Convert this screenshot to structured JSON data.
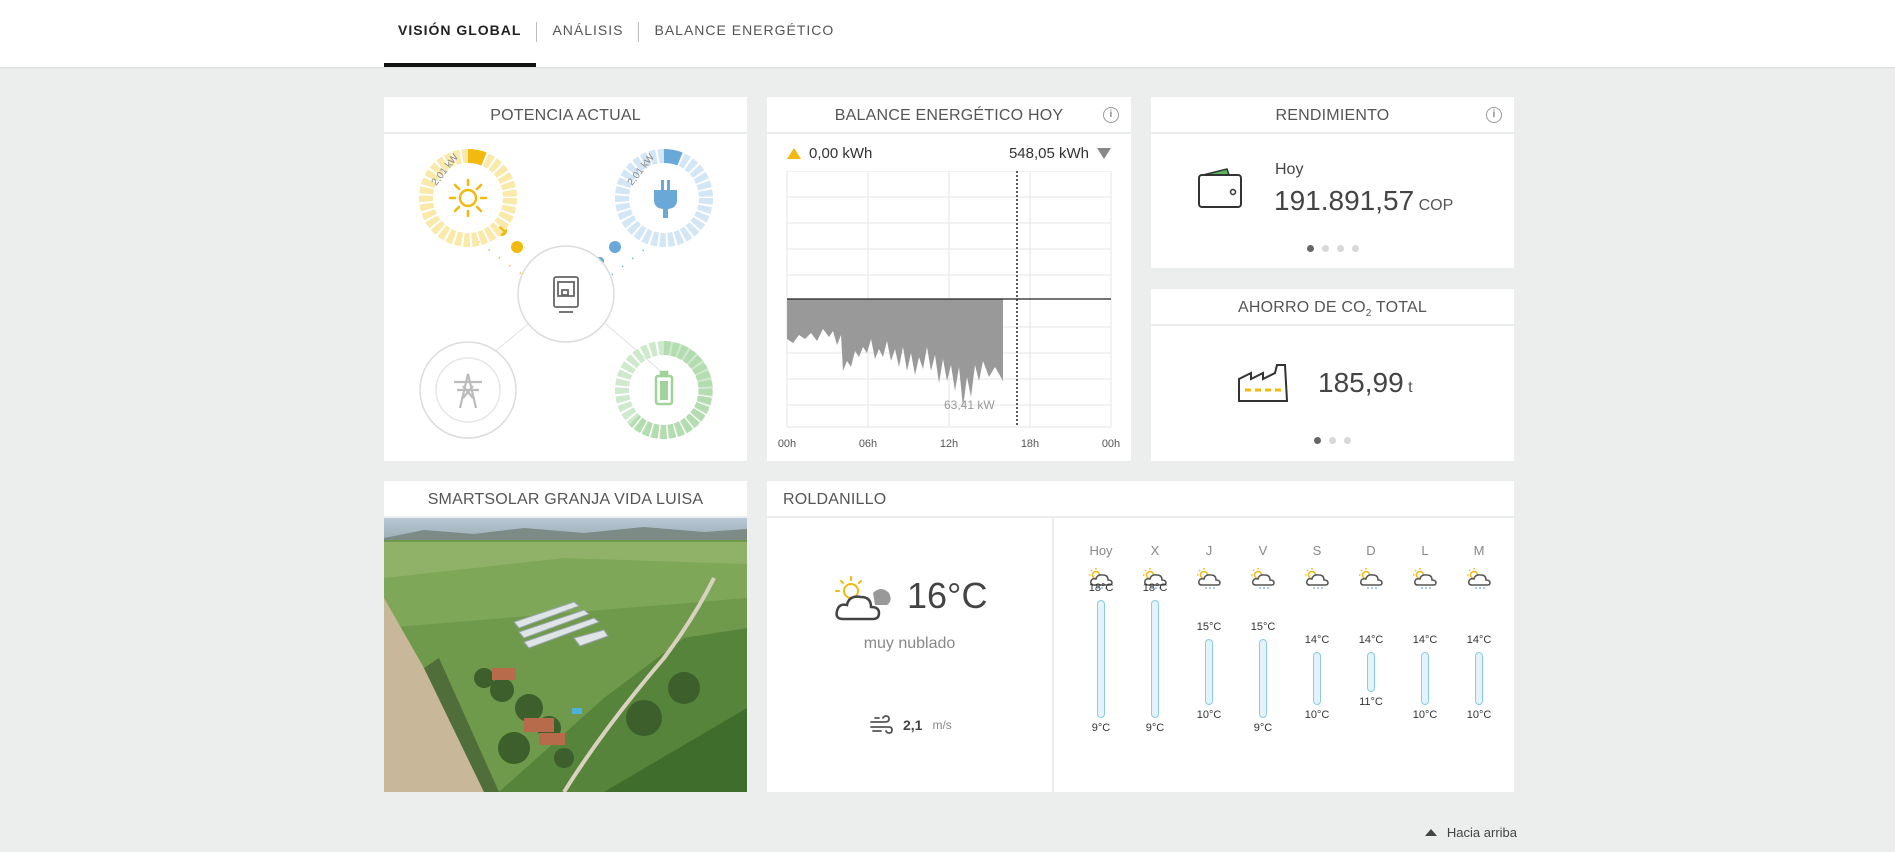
{
  "nav": {
    "tabs": [
      "VISIÓN GLOBAL",
      "ANÁLISIS",
      "BALANCE ENERGÉTICO"
    ]
  },
  "potencia": {
    "title": "POTENCIA ACTUAL",
    "solar_label": "2,01 kW",
    "consumo_label": "2,01 kW",
    "icons": [
      "sun-icon",
      "plug-icon",
      "inverter-icon",
      "grid-tower-icon",
      "battery-icon"
    ],
    "colors": {
      "solar": "#f2b90f",
      "consumo": "#6aa8d8",
      "battery": "#9fd39a"
    }
  },
  "balance": {
    "title": "BALANCE ENERGÉTICO HOY",
    "produced": "0,00 kWh",
    "consumed": "548,05 kWh",
    "peak_label": "63,41 kW",
    "x_ticks": [
      "00h",
      "06h",
      "12h",
      "18h",
      "00h"
    ]
  },
  "rendimiento": {
    "title": "RENDIMIENTO",
    "period": "Hoy",
    "value": "191.891,57",
    "unit": "COP"
  },
  "co2": {
    "title_prefix": "AHORRO DE CO",
    "title_sub": "2",
    "title_suffix": " TOTAL",
    "value": "185,99",
    "unit": "t"
  },
  "plant": {
    "title": "SMARTSOLAR GRANJA VIDA LUISA"
  },
  "weather": {
    "title": "ROLDANILLO",
    "current_temp": "16°C",
    "condition": "muy nublado",
    "wind_value": "2,1",
    "wind_unit": "m/s",
    "forecast": [
      {
        "day": "Hoy",
        "max": "18°C",
        "min": "9°C",
        "max_n": 18,
        "min_n": 9
      },
      {
        "day": "X",
        "max": "18°C",
        "min": "9°C",
        "max_n": 18,
        "min_n": 9
      },
      {
        "day": "J",
        "max": "15°C",
        "min": "10°C",
        "max_n": 15,
        "min_n": 10
      },
      {
        "day": "V",
        "max": "15°C",
        "min": "9°C",
        "max_n": 15,
        "min_n": 9
      },
      {
        "day": "S",
        "max": "14°C",
        "min": "10°C",
        "max_n": 14,
        "min_n": 10
      },
      {
        "day": "D",
        "max": "14°C",
        "min": "11°C",
        "max_n": 14,
        "min_n": 11
      },
      {
        "day": "L",
        "max": "14°C",
        "min": "10°C",
        "max_n": 14,
        "min_n": 10
      },
      {
        "day": "M",
        "max": "14°C",
        "min": "10°C",
        "max_n": 14,
        "min_n": 10
      }
    ]
  },
  "footer": {
    "back_to_top": "Hacia arriba"
  }
}
